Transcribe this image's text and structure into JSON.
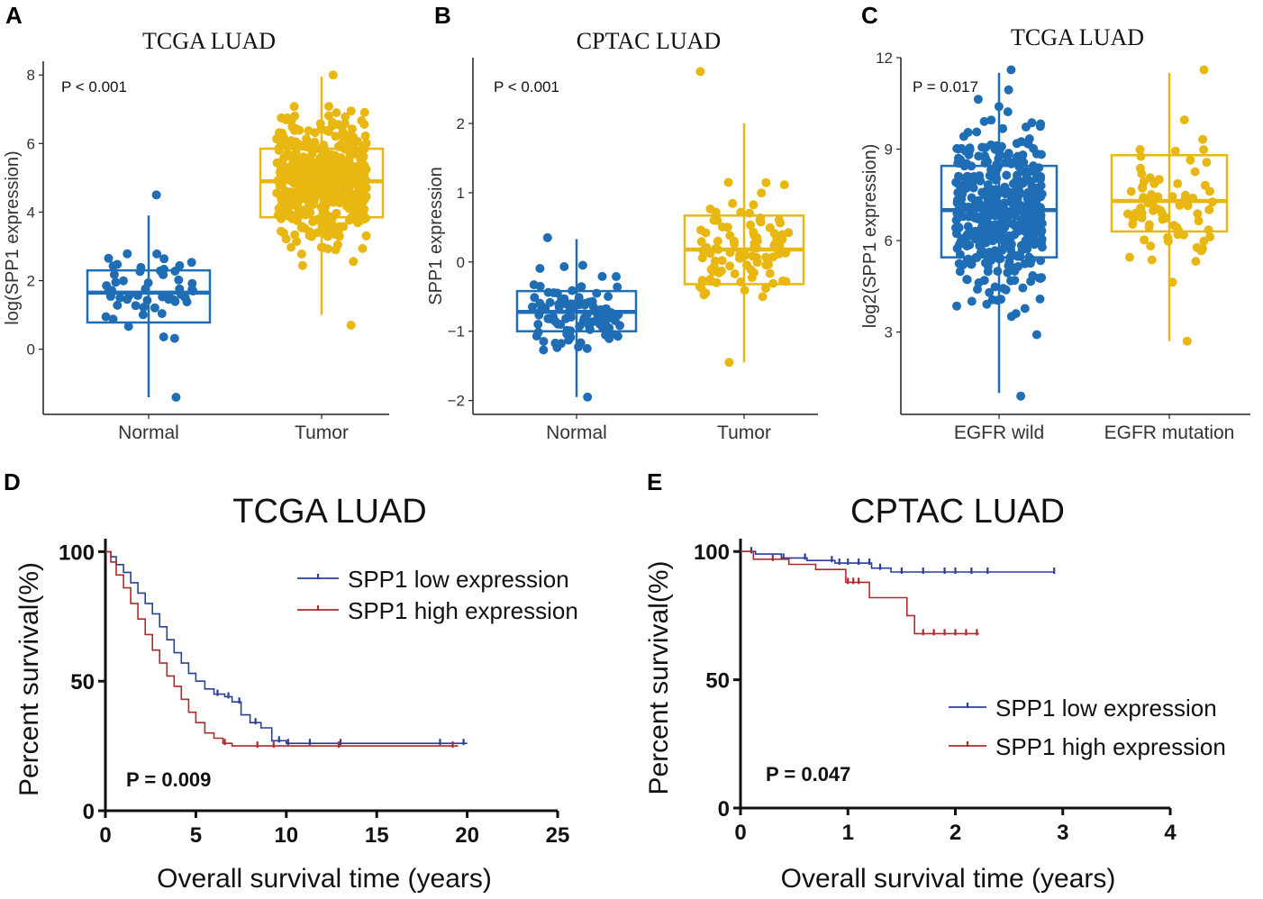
{
  "colors": {
    "blue": "#1f6eb5",
    "gold": "#e8b711",
    "km_blue": "#2b3f96",
    "km_red": "#b0292b",
    "axis": "#222222"
  },
  "chart_data": [
    {
      "id": "A",
      "type": "box",
      "panel_label": "A",
      "title": "TCGA LUAD",
      "ylabel": "log(SPP1 expression)",
      "ylim": [
        -1.9,
        8.4
      ],
      "yticks": [
        0,
        2,
        4,
        6,
        8
      ],
      "ytick_labels": [
        "0",
        "2",
        "4",
        "6",
        "8"
      ],
      "annotation": "P < 0.001",
      "categories": [
        "Normal",
        "Tumor"
      ],
      "boxes": [
        {
          "name": "Normal",
          "color": "#1f6eb5",
          "q1": 0.78,
          "median": 1.65,
          "q3": 2.3,
          "whisker_low": -1.4,
          "whisker_high": 3.9,
          "n_points": 55,
          "points_min": -1.4,
          "points_max": 4.5
        },
        {
          "name": "Tumor",
          "color": "#e8b711",
          "q1": 3.85,
          "median": 4.9,
          "q3": 5.85,
          "whisker_low": 1.0,
          "whisker_high": 7.95,
          "n_points": 500,
          "points_min": 0.7,
          "points_max": 8.0
        }
      ]
    },
    {
      "id": "B",
      "type": "box",
      "panel_label": "B",
      "title": "CPTAC LUAD",
      "ylabel": "SPP1 expression",
      "ylim": [
        -2.2,
        2.95
      ],
      "yticks": [
        -2,
        -1,
        0,
        1,
        2
      ],
      "ytick_labels": [
        "−2",
        "−1",
        "0",
        "1",
        "2"
      ],
      "annotation": "P < 0.001",
      "categories": [
        "Normal",
        "Tumor"
      ],
      "boxes": [
        {
          "name": "Normal",
          "color": "#1f6eb5",
          "q1": -1.0,
          "median": -0.72,
          "q3": -0.42,
          "whisker_low": -1.95,
          "whisker_high": 0.33,
          "n_points": 100,
          "points_min": -1.95,
          "points_max": 0.35
        },
        {
          "name": "Tumor",
          "color": "#e8b711",
          "q1": -0.32,
          "median": 0.18,
          "q3": 0.67,
          "whisker_low": -1.45,
          "whisker_high": 2.0,
          "n_points": 100,
          "points_min": -1.45,
          "points_max": 2.75
        }
      ]
    },
    {
      "id": "C",
      "type": "box",
      "panel_label": "C",
      "title": "TCGA LUAD",
      "ylabel": "log2(SPP1 expression)",
      "ylim": [
        0.3,
        12.0
      ],
      "yticks": [
        3,
        6,
        9,
        12
      ],
      "ytick_labels": [
        "3",
        "6",
        "9",
        "12"
      ],
      "annotation": "P = 0.017",
      "categories": [
        "EGFR wild",
        "EGFR mutation"
      ],
      "boxes": [
        {
          "name": "EGFR wild",
          "color": "#1f6eb5",
          "q1": 5.45,
          "median": 7.0,
          "q3": 8.45,
          "whisker_low": 1.0,
          "whisker_high": 11.5,
          "n_points": 450,
          "points_min": 0.9,
          "points_max": 11.6
        },
        {
          "name": "EGFR mutation",
          "color": "#e8b711",
          "q1": 6.3,
          "median": 7.3,
          "q3": 8.8,
          "whisker_low": 2.7,
          "whisker_high": 11.5,
          "n_points": 75,
          "points_min": 2.7,
          "points_max": 11.6
        }
      ]
    },
    {
      "id": "D",
      "type": "line",
      "subtype": "kaplan-meier",
      "panel_label": "D",
      "title": "TCGA  LUAD",
      "xlabel": "Overall survival time (years)",
      "ylabel": "Percent survival(%)",
      "xlim": [
        0,
        25
      ],
      "ylim": [
        0,
        105
      ],
      "xticks": [
        0,
        5,
        10,
        15,
        20,
        25
      ],
      "xtick_labels": [
        "0",
        "5",
        "10",
        "15",
        "20",
        "25"
      ],
      "yticks": [
        0,
        50,
        100
      ],
      "ytick_labels": [
        "0",
        "50",
        "100"
      ],
      "annotation": "P = 0.009",
      "legend_position": "top-right",
      "series": [
        {
          "name": "SPP1 low expression",
          "color": "#2b3f96",
          "x": [
            0,
            0.3,
            0.6,
            1.0,
            1.4,
            1.8,
            2.2,
            2.6,
            3.0,
            3.4,
            3.8,
            4.2,
            4.6,
            5.0,
            5.5,
            6.0,
            6.6,
            7.0,
            7.5,
            8.0,
            8.6,
            9.2,
            10.0,
            12.0,
            15.0,
            18.5,
            20.0
          ],
          "y": [
            100,
            98,
            95,
            92,
            88,
            84,
            80,
            76,
            71,
            66,
            61,
            57,
            53,
            50,
            47,
            45,
            44,
            42,
            37,
            34,
            32,
            27,
            26,
            26,
            26,
            26,
            26
          ],
          "censor_x": [
            6.2,
            6.8,
            7.4,
            8.3,
            9.6,
            10.1,
            11.3,
            13.0,
            18.5,
            19.8
          ]
        },
        {
          "name": "SPP1 high expression",
          "color": "#b0292b",
          "x": [
            0,
            0.3,
            0.6,
            1.0,
            1.4,
            1.8,
            2.2,
            2.6,
            3.0,
            3.4,
            3.8,
            4.2,
            4.6,
            5.0,
            5.5,
            6.0,
            6.5,
            7.0,
            8.0,
            10.0,
            15.0,
            19.5
          ],
          "y": [
            100,
            96,
            91,
            86,
            80,
            74,
            68,
            62,
            57,
            52,
            48,
            43,
            38,
            34,
            30,
            28,
            26,
            25,
            25,
            25,
            25,
            25
          ],
          "censor_x": [
            6.6,
            8.4,
            9.3,
            12.9,
            19.2
          ]
        }
      ]
    },
    {
      "id": "E",
      "type": "line",
      "subtype": "kaplan-meier",
      "panel_label": "E",
      "title": "CPTAC  LUAD",
      "xlabel": "Overall survival time (years)",
      "ylabel": "Percent survival(%)",
      "xlim": [
        0,
        4
      ],
      "ylim": [
        0,
        105
      ],
      "xticks": [
        0,
        1,
        2,
        3,
        4
      ],
      "xtick_labels": [
        "0",
        "1",
        "2",
        "3",
        "4"
      ],
      "yticks": [
        0,
        50,
        100
      ],
      "ytick_labels": [
        "0",
        "50",
        "100"
      ],
      "annotation": "P = 0.047",
      "legend_position": "bottom-right",
      "series": [
        {
          "name": "SPP1 low expression",
          "color": "#2b3f96",
          "x": [
            0,
            0.14,
            0.38,
            0.62,
            0.88,
            1.22,
            1.4,
            2.92
          ],
          "y": [
            100,
            99,
            97.5,
            96.5,
            95.5,
            93.5,
            92,
            92
          ],
          "censor_x": [
            0.1,
            0.4,
            0.6,
            0.85,
            0.92,
            1.0,
            1.1,
            1.2,
            1.3,
            1.5,
            1.7,
            1.9,
            2.0,
            2.15,
            2.3,
            2.92
          ]
        },
        {
          "name": "SPP1 high expression",
          "color": "#b0292b",
          "x": [
            0,
            0.12,
            0.45,
            0.7,
            0.98,
            1.2,
            1.55,
            1.62,
            2.22
          ],
          "y": [
            100,
            97,
            95,
            93,
            88,
            82,
            75,
            68,
            68
          ],
          "censor_x": [
            0.3,
            1.0,
            1.05,
            1.1,
            1.7,
            1.8,
            1.9,
            2.0,
            2.1,
            2.2
          ]
        }
      ]
    }
  ]
}
